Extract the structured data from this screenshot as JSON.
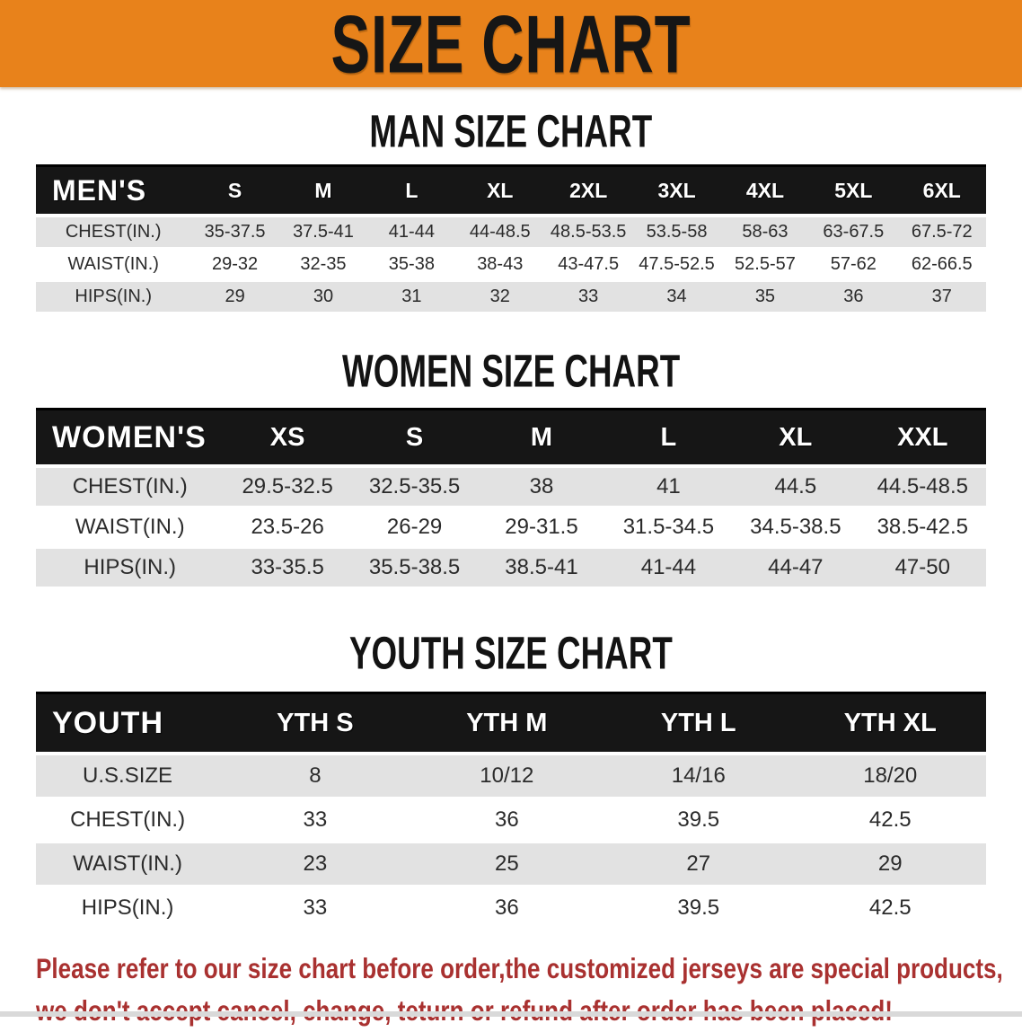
{
  "banner": {
    "title": "SIZE CHART"
  },
  "colors": {
    "banner_bg": "#E8821B",
    "table_header_bg": "#161616",
    "row_alt_gray": "#E2E2E2",
    "disclaimer_red": "#A93130",
    "title_black": "#131313"
  },
  "sections": [
    {
      "id": "men",
      "title": "MAN SIZE CHART",
      "header_label": "MEN'S",
      "columns": [
        "S",
        "M",
        "L",
        "XL",
        "2XL",
        "3XL",
        "4XL",
        "5XL",
        "6XL"
      ],
      "rows": [
        {
          "label": "CHEST(IN.)",
          "values": [
            "35-37.5",
            "37.5-41",
            "41-44",
            "44-48.5",
            "48.5-53.5",
            "53.5-58",
            "58-63",
            "63-67.5",
            "67.5-72"
          ]
        },
        {
          "label": "WAIST(IN.)",
          "values": [
            "29-32",
            "32-35",
            "35-38",
            "38-43",
            "43-47.5",
            "47.5-52.5",
            "52.5-57",
            "57-62",
            "62-66.5"
          ]
        },
        {
          "label": "HIPS(IN.)",
          "values": [
            "29",
            "30",
            "31",
            "32",
            "33",
            "34",
            "35",
            "36",
            "37"
          ]
        }
      ]
    },
    {
      "id": "women",
      "title": "WOMEN SIZE CHART",
      "header_label": "WOMEN'S",
      "columns": [
        "XS",
        "S",
        "M",
        "L",
        "XL",
        "XXL"
      ],
      "rows": [
        {
          "label": "CHEST(IN.)",
          "values": [
            "29.5-32.5",
            "32.5-35.5",
            "38",
            "41",
            "44.5",
            "44.5-48.5"
          ]
        },
        {
          "label": "WAIST(IN.)",
          "values": [
            "23.5-26",
            "26-29",
            "29-31.5",
            "31.5-34.5",
            "34.5-38.5",
            "38.5-42.5"
          ]
        },
        {
          "label": "HIPS(IN.)",
          "values": [
            "33-35.5",
            "35.5-38.5",
            "38.5-41",
            "41-44",
            "44-47",
            "47-50"
          ]
        }
      ]
    },
    {
      "id": "youth",
      "title": "YOUTH SIZE CHART",
      "header_label": "YOUTH",
      "columns": [
        "YTH S",
        "YTH M",
        "YTH L",
        "YTH XL"
      ],
      "rows": [
        {
          "label": "U.S.SIZE",
          "values": [
            "8",
            "10/12",
            "14/16",
            "18/20"
          ]
        },
        {
          "label": "CHEST(IN.)",
          "values": [
            "33",
            "36",
            "39.5",
            "42.5"
          ]
        },
        {
          "label": "WAIST(IN.)",
          "values": [
            "23",
            "25",
            "27",
            "29"
          ]
        },
        {
          "label": "HIPS(IN.)",
          "values": [
            "33",
            "36",
            "39.5",
            "42.5"
          ]
        }
      ]
    }
  ],
  "disclaimer": {
    "line1": "Please refer to our size chart before order,the customized jerseys are special products,",
    "line2": "we don't accept cancel, change, teturn or refund after order has been placed!"
  }
}
